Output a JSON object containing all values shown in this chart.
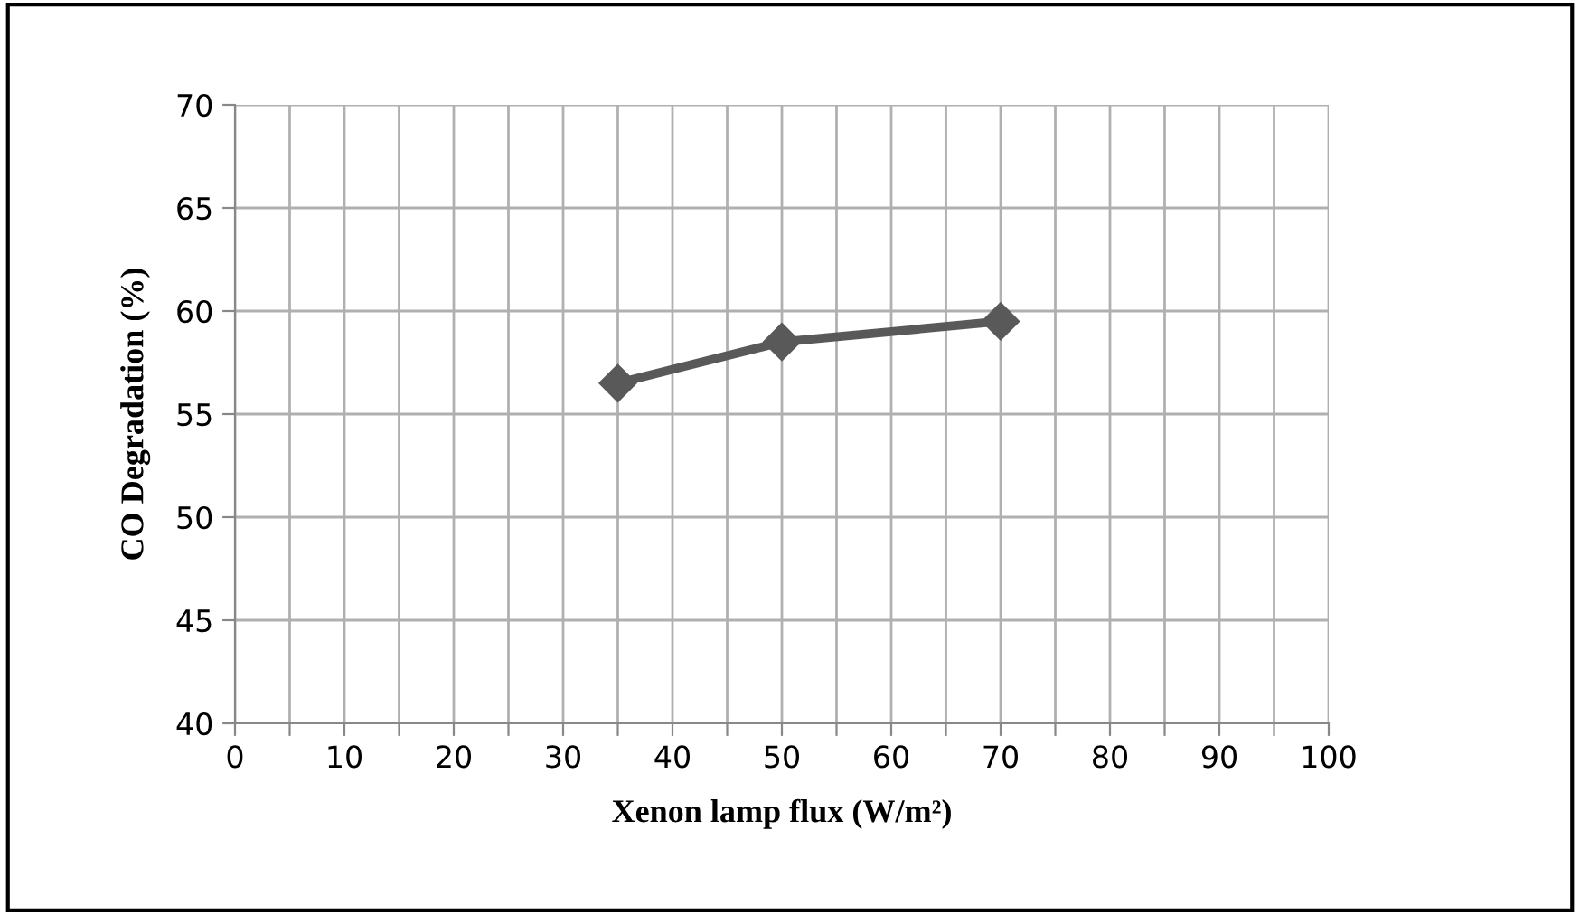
{
  "chart_data": {
    "type": "line",
    "xlabel": "Xenon lamp flux (W/m²)",
    "ylabel": "CO Degradation (%)",
    "x": [
      35,
      50,
      70
    ],
    "series": [
      {
        "color": "#595959",
        "values": [
          56.5,
          58.5,
          59.5
        ]
      }
    ],
    "xlim": [
      0,
      100
    ],
    "xticks": [
      0,
      {
        "value": 5,
        "label": null
      },
      10,
      {
        "value": 15,
        "label": null
      },
      20,
      {
        "value": 25,
        "label": null
      },
      30,
      {
        "value": 35,
        "label": null
      },
      40,
      {
        "value": 45,
        "label": null
      },
      50,
      {
        "value": 55,
        "label": null
      },
      60,
      {
        "value": 65,
        "label": null
      },
      70,
      {
        "value": 75,
        "label": null
      },
      80,
      {
        "value": 85,
        "label": null
      },
      90,
      {
        "value": 95,
        "label": null
      },
      100
    ],
    "ylim": [
      40,
      70
    ],
    "yticks": [
      40,
      45,
      50,
      55,
      60,
      65,
      70
    ],
    "grid": true,
    "marker": "diamond",
    "line_style": "solid",
    "legend": false
  }
}
